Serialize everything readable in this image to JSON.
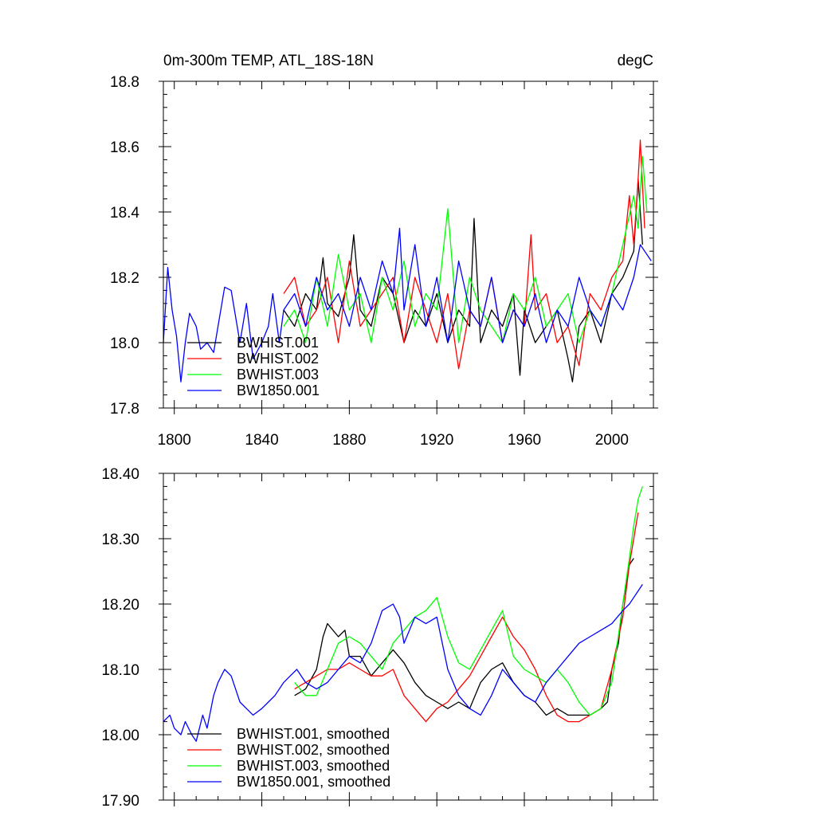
{
  "chart_data": [
    {
      "type": "line",
      "title_left": "0m-300m TEMP, ATL_18S-18N",
      "title_right": "degC",
      "xlim": [
        1795,
        2019
      ],
      "ylim": [
        17.8,
        18.8
      ],
      "x_major_ticks": [
        1800,
        1840,
        1880,
        1920,
        1960,
        2000
      ],
      "x_tick_labels": [
        "1800",
        "1840",
        "1880",
        "1920",
        "1960",
        "2000"
      ],
      "y_major_ticks": [
        17.8,
        18.0,
        18.2,
        18.4,
        18.6,
        18.8
      ],
      "y_tick_labels": [
        "17.8",
        "18.0",
        "18.2",
        "18.4",
        "18.6",
        "18.8"
      ],
      "legend": [
        "BWHIST.001",
        "BWHIST.002",
        "BWHIST.003",
        "BW1850.001"
      ],
      "series": [
        {
          "name": "BWHIST.001",
          "color": "#000000",
          "x": [
            1850,
            1855,
            1860,
            1865,
            1868,
            1870,
            1875,
            1880,
            1882,
            1885,
            1890,
            1895,
            1900,
            1905,
            1910,
            1915,
            1920,
            1925,
            1930,
            1935,
            1937,
            1940,
            1945,
            1950,
            1955,
            1958,
            1960,
            1965,
            1970,
            1975,
            1980,
            1982,
            1985,
            1990,
            1995,
            2000,
            2005,
            2010,
            2012,
            2014
          ],
          "values": [
            18.1,
            18.05,
            18.15,
            18.1,
            18.26,
            18.12,
            18.08,
            18.2,
            18.33,
            18.1,
            18.05,
            18.2,
            18.15,
            18.0,
            18.1,
            18.05,
            18.15,
            18.0,
            18.1,
            18.05,
            18.38,
            18.0,
            18.1,
            18.05,
            18.15,
            17.9,
            18.1,
            18.0,
            18.05,
            18.1,
            17.95,
            17.88,
            18.05,
            18.1,
            18.0,
            18.15,
            18.2,
            18.28,
            18.5,
            18.3
          ]
        },
        {
          "name": "BWHIST.002",
          "color": "#ff0000",
          "x": [
            1850,
            1855,
            1860,
            1865,
            1870,
            1875,
            1880,
            1885,
            1890,
            1895,
            1900,
            1905,
            1910,
            1915,
            1920,
            1925,
            1930,
            1935,
            1940,
            1945,
            1950,
            1955,
            1960,
            1963,
            1965,
            1970,
            1975,
            1980,
            1985,
            1990,
            1995,
            2000,
            2005,
            2008,
            2010,
            2012,
            2013,
            2015
          ],
          "values": [
            18.15,
            18.2,
            18.05,
            18.1,
            18.2,
            18.0,
            18.25,
            18.05,
            18.1,
            18.15,
            18.2,
            18.0,
            18.2,
            18.1,
            18.0,
            18.15,
            17.92,
            18.1,
            18.05,
            18.2,
            18.0,
            18.1,
            18.05,
            18.33,
            18.1,
            18.15,
            18.0,
            18.05,
            17.93,
            18.15,
            18.1,
            18.2,
            18.25,
            18.45,
            18.3,
            18.5,
            18.62,
            18.35
          ]
        },
        {
          "name": "BWHIST.003",
          "color": "#00ff00",
          "x": [
            1850,
            1855,
            1860,
            1865,
            1870,
            1875,
            1880,
            1885,
            1890,
            1895,
            1900,
            1905,
            1910,
            1915,
            1920,
            1925,
            1930,
            1935,
            1940,
            1945,
            1950,
            1955,
            1960,
            1965,
            1970,
            1975,
            1980,
            1985,
            1990,
            1995,
            2000,
            2005,
            2010,
            2012,
            2014,
            2016
          ],
          "values": [
            18.05,
            18.1,
            18.0,
            18.2,
            18.05,
            18.27,
            18.1,
            18.15,
            18.0,
            18.2,
            18.1,
            18.25,
            18.05,
            18.15,
            18.1,
            18.41,
            18.0,
            18.2,
            18.1,
            18.05,
            18.0,
            18.15,
            18.1,
            18.2,
            18.05,
            18.1,
            18.15,
            18.0,
            18.1,
            18.05,
            18.15,
            18.3,
            18.45,
            18.35,
            18.57,
            18.4
          ]
        },
        {
          "name": "BW1850.001",
          "color": "#0000ff",
          "x": [
            1795,
            1797,
            1799,
            1801,
            1803,
            1805,
            1807,
            1810,
            1812,
            1815,
            1818,
            1820,
            1823,
            1826,
            1830,
            1833,
            1836,
            1840,
            1843,
            1845,
            1848,
            1850,
            1855,
            1860,
            1865,
            1870,
            1875,
            1880,
            1885,
            1890,
            1895,
            1900,
            1903,
            1905,
            1910,
            1915,
            1920,
            1925,
            1930,
            1935,
            1940,
            1945,
            1950,
            1955,
            1960,
            1965,
            1970,
            1975,
            1980,
            1985,
            1990,
            1995,
            2000,
            2005,
            2010,
            2013,
            2015,
            2018
          ],
          "values": [
            18.0,
            18.23,
            18.1,
            18.02,
            17.88,
            18.0,
            18.09,
            18.05,
            17.98,
            18.0,
            17.97,
            18.05,
            18.17,
            18.16,
            18.0,
            18.12,
            17.95,
            18.0,
            18.05,
            18.15,
            18.0,
            18.1,
            18.15,
            18.05,
            18.2,
            18.1,
            18.15,
            18.05,
            18.2,
            18.1,
            18.25,
            18.15,
            18.35,
            18.1,
            18.3,
            18.05,
            18.2,
            18.0,
            18.25,
            18.1,
            18.05,
            18.2,
            18.0,
            18.1,
            18.05,
            18.15,
            18.0,
            18.1,
            18.05,
            18.2,
            18.1,
            18.05,
            18.15,
            18.1,
            18.2,
            18.3,
            18.28,
            18.25
          ]
        }
      ]
    },
    {
      "type": "line",
      "xlim": [
        1795,
        2019
      ],
      "ylim": [
        17.9,
        18.4
      ],
      "x_major_ticks": [
        1800,
        1840,
        1880,
        1920,
        1960,
        2000
      ],
      "y_major_ticks": [
        17.9,
        18.0,
        18.1,
        18.2,
        18.3,
        18.4
      ],
      "y_tick_labels": [
        "17.90",
        "18.00",
        "18.10",
        "18.20",
        "18.30",
        "18.40"
      ],
      "legend": [
        "BWHIST.001, smoothed",
        "BWHIST.002, smoothed",
        "BWHIST.003, smoothed",
        "BW1850.001, smoothed"
      ],
      "series": [
        {
          "name": "BWHIST.001, smoothed",
          "color": "#000000",
          "x": [
            1855,
            1860,
            1865,
            1868,
            1870,
            1875,
            1878,
            1880,
            1885,
            1890,
            1895,
            1900,
            1905,
            1910,
            1915,
            1920,
            1925,
            1930,
            1935,
            1940,
            1945,
            1950,
            1955,
            1960,
            1965,
            1970,
            1975,
            1980,
            1985,
            1990,
            1995,
            1998,
            2000,
            2003,
            2005,
            2008,
            2010
          ],
          "values": [
            18.06,
            18.07,
            18.1,
            18.15,
            18.17,
            18.15,
            18.16,
            18.12,
            18.12,
            18.09,
            18.11,
            18.13,
            18.11,
            18.08,
            18.06,
            18.05,
            18.04,
            18.05,
            18.04,
            18.08,
            18.1,
            18.11,
            18.08,
            18.06,
            18.05,
            18.03,
            18.04,
            18.03,
            18.03,
            18.03,
            18.04,
            18.05,
            18.1,
            18.14,
            18.2,
            18.26,
            18.27
          ]
        },
        {
          "name": "BWHIST.002, smoothed",
          "color": "#ff0000",
          "x": [
            1855,
            1860,
            1865,
            1870,
            1875,
            1880,
            1885,
            1890,
            1895,
            1900,
            1905,
            1910,
            1915,
            1920,
            1925,
            1930,
            1935,
            1940,
            1945,
            1950,
            1955,
            1960,
            1965,
            1970,
            1975,
            1980,
            1985,
            1990,
            1995,
            2000,
            2005,
            2008,
            2010,
            2012
          ],
          "values": [
            18.07,
            18.08,
            18.09,
            18.1,
            18.1,
            18.11,
            18.1,
            18.09,
            18.09,
            18.1,
            18.06,
            18.04,
            18.02,
            18.04,
            18.05,
            18.07,
            18.09,
            18.12,
            18.15,
            18.18,
            18.15,
            18.13,
            18.1,
            18.06,
            18.03,
            18.02,
            18.02,
            18.03,
            18.04,
            18.1,
            18.18,
            18.26,
            18.3,
            18.34
          ]
        },
        {
          "name": "BWHIST.003, smoothed",
          "color": "#00ff00",
          "x": [
            1855,
            1860,
            1865,
            1870,
            1875,
            1880,
            1885,
            1890,
            1895,
            1900,
            1905,
            1910,
            1915,
            1920,
            1925,
            1930,
            1935,
            1940,
            1945,
            1950,
            1955,
            1960,
            1965,
            1970,
            1975,
            1980,
            1985,
            1990,
            1995,
            2000,
            2005,
            2008,
            2010,
            2012,
            2014
          ],
          "values": [
            18.08,
            18.06,
            18.06,
            18.1,
            18.14,
            18.15,
            18.14,
            18.12,
            18.1,
            18.14,
            18.16,
            18.18,
            18.19,
            18.21,
            18.15,
            18.11,
            18.1,
            18.13,
            18.16,
            18.19,
            18.12,
            18.1,
            18.09,
            18.08,
            18.1,
            18.08,
            18.05,
            18.03,
            18.04,
            18.08,
            18.2,
            18.27,
            18.32,
            18.36,
            18.38
          ]
        },
        {
          "name": "BW1850.001, smoothed",
          "color": "#0000ff",
          "x": [
            1795,
            1798,
            1800,
            1803,
            1805,
            1808,
            1810,
            1813,
            1815,
            1818,
            1820,
            1823,
            1826,
            1828,
            1830,
            1833,
            1836,
            1840,
            1843,
            1846,
            1850,
            1853,
            1856,
            1860,
            1865,
            1870,
            1875,
            1880,
            1885,
            1890,
            1895,
            1900,
            1903,
            1905,
            1910,
            1915,
            1920,
            1925,
            1930,
            1935,
            1940,
            1945,
            1950,
            1955,
            1960,
            1965,
            1970,
            1975,
            1980,
            1985,
            1990,
            1995,
            2000,
            2005,
            2008,
            2010,
            2012,
            2014
          ],
          "values": [
            18.02,
            18.03,
            18.01,
            18.0,
            18.02,
            18.0,
            17.99,
            18.03,
            18.01,
            18.06,
            18.08,
            18.1,
            18.09,
            18.07,
            18.05,
            18.04,
            18.03,
            18.04,
            18.05,
            18.06,
            18.08,
            18.09,
            18.1,
            18.08,
            18.07,
            18.08,
            18.1,
            18.12,
            18.11,
            18.14,
            18.19,
            18.2,
            18.18,
            18.14,
            18.18,
            18.17,
            18.18,
            18.1,
            18.06,
            18.04,
            18.03,
            18.06,
            18.1,
            18.08,
            18.06,
            18.05,
            18.08,
            18.1,
            18.12,
            18.14,
            18.15,
            18.16,
            18.17,
            18.19,
            18.2,
            18.21,
            18.22,
            18.23
          ]
        }
      ]
    }
  ]
}
